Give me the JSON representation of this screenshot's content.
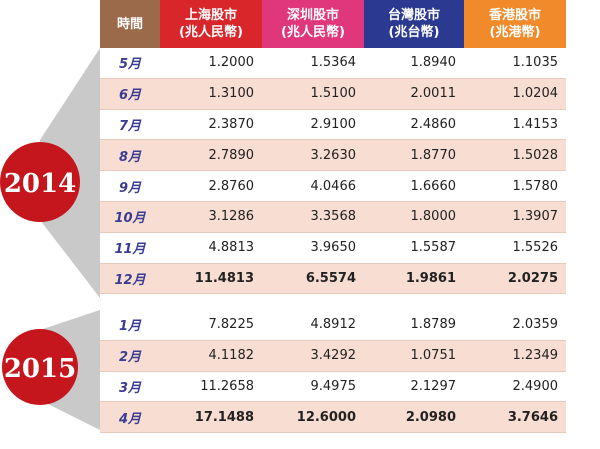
{
  "header": {
    "columns": [
      {
        "title": "時間"
      },
      {
        "title": "上海股市",
        "unit": "(兆人民幣)"
      },
      {
        "title": "深圳股市",
        "unit": "(兆人民幣)"
      },
      {
        "title": "台灣股市",
        "unit": "(兆台幣)"
      },
      {
        "title": "香港股市",
        "unit": "(兆港幣)"
      }
    ]
  },
  "groups": [
    {
      "year": "2014",
      "rows": [
        [
          "5月",
          "1.2000",
          "1.5364",
          "1.8940",
          "1.1035"
        ],
        [
          "6月",
          "1.3100",
          "1.5100",
          "2.0011",
          "1.0204"
        ],
        [
          "7月",
          "2.3870",
          "2.9100",
          "2.4860",
          "1.4153"
        ],
        [
          "8月",
          "2.7890",
          "3.2630",
          "1.8770",
          "1.5028"
        ],
        [
          "9月",
          "2.8760",
          "4.0466",
          "1.6660",
          "1.5780"
        ],
        [
          "10月",
          "3.1286",
          "3.3568",
          "1.8000",
          "1.3907"
        ],
        [
          "11月",
          "4.8813",
          "3.9650",
          "1.5587",
          "1.5526"
        ],
        [
          "12月",
          "11.4813",
          "6.5574",
          "1.9861",
          "2.0275"
        ]
      ]
    },
    {
      "year": "2015",
      "rows": [
        [
          "1月",
          "7.8225",
          "4.8912",
          "1.8789",
          "2.0359"
        ],
        [
          "2月",
          "4.1182",
          "3.4292",
          "1.0751",
          "1.2349"
        ],
        [
          "3月",
          "11.2658",
          "9.4975",
          "2.1297",
          "2.4900"
        ],
        [
          "4月",
          "17.1488",
          "12.6000",
          "2.0980",
          "3.7646"
        ]
      ]
    }
  ]
}
